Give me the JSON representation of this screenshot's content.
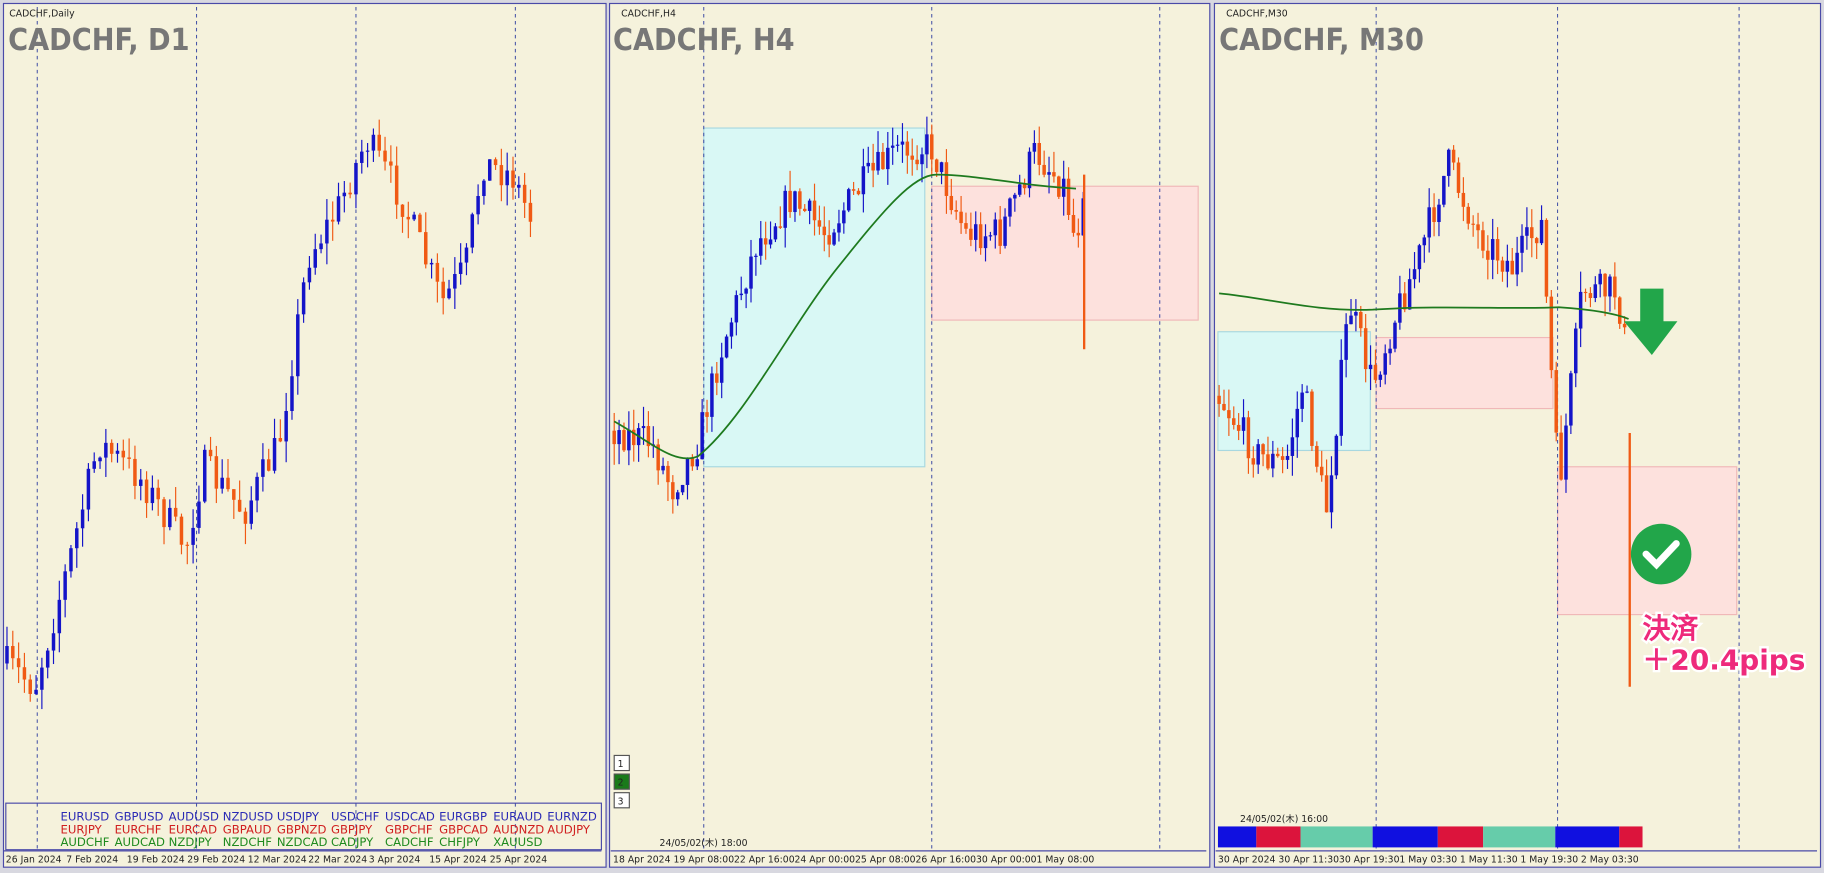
{
  "panels": [
    {
      "header": "CADCHF,Daily",
      "title": "CADCHF, D1",
      "dates": [
        "26 Jan 2024",
        "7 Feb 2024",
        "19 Feb 2024",
        "29 Feb 2024",
        "12 Mar 2024",
        "22 Mar 2024",
        "3 Apr 2024",
        "15 Apr 2024",
        "25 Apr 2024"
      ]
    },
    {
      "header": "CADCHF,H4",
      "title": "CADCHF, H4",
      "dates": [
        "18 Apr 2024",
        "19 Apr 08:00",
        "22 Apr 16:00",
        "24 Apr 00:00",
        "25 Apr 08:00",
        "26 Apr 16:00",
        "30 Apr 00:00",
        "1 May 08:00"
      ],
      "tabs": [
        "1",
        "2",
        "3"
      ],
      "timestamp": "24/05/02(木) 18:00"
    },
    {
      "header": "CADCHF,M30",
      "title": "CADCHF, M30",
      "dates": [
        "30 Apr 2024",
        "30 Apr 11:30",
        "30 Apr 19:30",
        "1 May 03:30",
        "1 May 11:30",
        "1 May 19:30",
        "2 May 03:30"
      ],
      "timestamp": "24/05/02(木) 16:00"
    }
  ],
  "symbols": {
    "colors": [
      "#2a2ab4",
      "#d02020",
      "#1e8a1e"
    ],
    "rows": [
      [
        "EURUSD",
        "GBPUSD",
        "AUDUSD",
        "NZDUSD",
        "USDJPY",
        "USDCHF",
        "USDCAD",
        "EURGBP",
        "EURAUD",
        "EURNZD"
      ],
      [
        "EURJPY",
        "EURCHF",
        "EURCAD",
        "GBPAUD",
        "GBPNZD",
        "GBPJPY",
        "GBPCHF",
        "GBPCAD",
        "AUDNZD",
        "AUDJPY"
      ],
      [
        "AUDCHF",
        "AUDCAD",
        "NZDJPY",
        "NZDCHF",
        "NZDCAD",
        "CADJPY",
        "CADCHF",
        "CHFJPY",
        "XAUUSD"
      ]
    ]
  },
  "annotation": {
    "label": "決済",
    "pips": "＋20.4pips"
  }
}
